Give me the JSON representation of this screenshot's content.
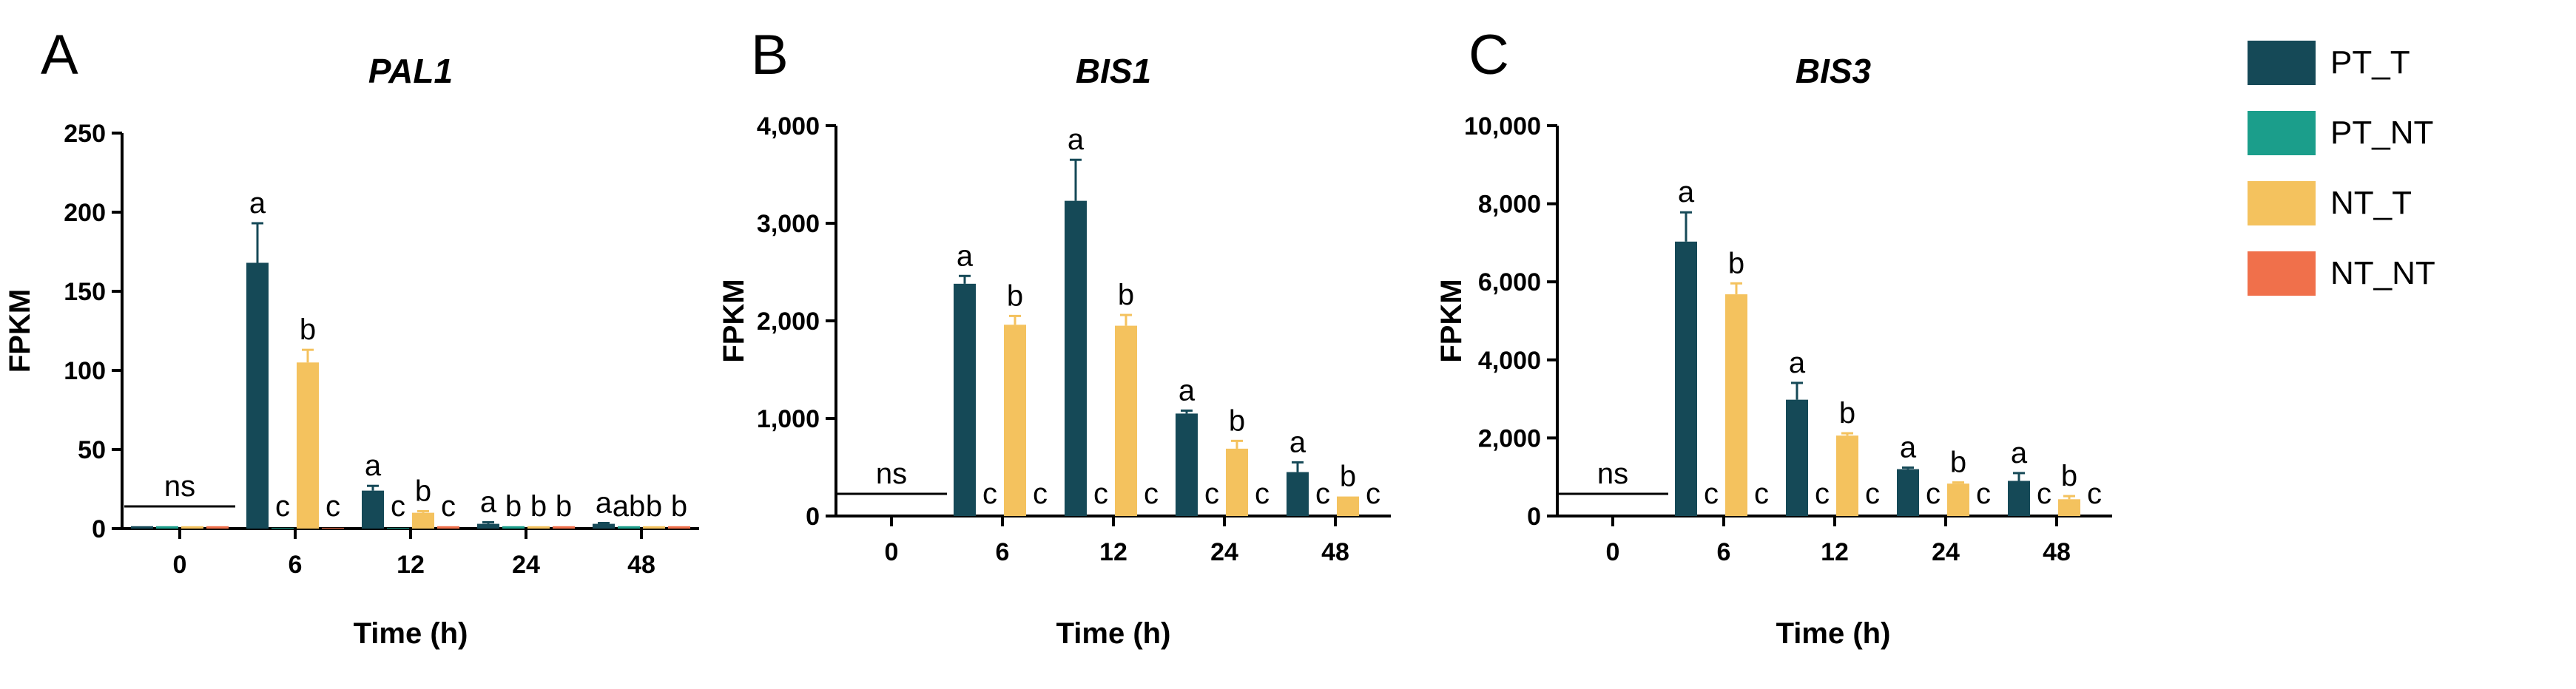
{
  "colors": {
    "PT_T": "#154957",
    "PT_NT": "#1B9E8B",
    "NT_T": "#F4C25E",
    "NT_NT": "#F0704B"
  },
  "legend": [
    "PT_T",
    "PT_NT",
    "NT_T",
    "NT_NT"
  ],
  "chart_data": [
    {
      "type": "bar",
      "panel": "A",
      "title": "PAL1",
      "xlabel": "Time (h)",
      "ylabel": "FPKM",
      "categories": [
        "0",
        "6",
        "12",
        "24",
        "48"
      ],
      "ylim": [
        0,
        250
      ],
      "yticks": [
        0,
        50,
        100,
        150,
        200,
        250
      ],
      "ytick_labels": [
        "0",
        "50",
        "100",
        "150",
        "200",
        "250"
      ],
      "series": [
        {
          "name": "PT_T",
          "values": [
            1.5,
            168,
            24,
            3,
            3
          ],
          "errors": [
            0,
            25,
            3,
            1,
            0.5
          ]
        },
        {
          "name": "PT_NT",
          "values": [
            1.5,
            0.5,
            0.5,
            1.5,
            1.5
          ],
          "errors": [
            0,
            0,
            0,
            0,
            0
          ]
        },
        {
          "name": "NT_T",
          "values": [
            1.5,
            105,
            10,
            1.5,
            1.5
          ],
          "errors": [
            0,
            8,
            1,
            0,
            0
          ]
        },
        {
          "name": "NT_NT",
          "values": [
            1.5,
            0.5,
            1.5,
            1.5,
            1.5
          ],
          "errors": [
            0,
            0,
            0,
            0,
            0
          ]
        }
      ],
      "ns_group": 0,
      "ns_label": "ns",
      "significance": [
        [],
        [
          "a",
          "c",
          "b",
          "c"
        ],
        [
          "a",
          "c",
          "b",
          "c"
        ],
        [
          "a",
          "b",
          "b",
          "b"
        ],
        [
          "a",
          "ab",
          "b",
          "b"
        ]
      ]
    },
    {
      "type": "bar",
      "panel": "B",
      "title": "BIS1",
      "xlabel": "Time (h)",
      "ylabel": "FPKM",
      "categories": [
        "0",
        "6",
        "12",
        "24",
        "48"
      ],
      "ylim": [
        0,
        4000
      ],
      "yticks": [
        0,
        1000,
        2000,
        3000,
        4000
      ],
      "ytick_labels": [
        "0",
        "1,000",
        "2,000",
        "3,000",
        "4,000"
      ],
      "series": [
        {
          "name": "PT_T",
          "values": [
            0,
            2380,
            3230,
            1050,
            450
          ],
          "errors": [
            0,
            80,
            420,
            30,
            100
          ]
        },
        {
          "name": "PT_NT",
          "values": [
            0,
            0,
            0,
            0,
            0
          ],
          "errors": [
            0,
            0,
            0,
            0,
            0
          ]
        },
        {
          "name": "NT_T",
          "values": [
            0,
            1960,
            1950,
            690,
            200
          ],
          "errors": [
            0,
            90,
            110,
            80,
            0
          ]
        },
        {
          "name": "NT_NT",
          "values": [
            0,
            0,
            0,
            0,
            0
          ],
          "errors": [
            0,
            0,
            0,
            0,
            0
          ]
        }
      ],
      "ns_group": 0,
      "ns_label": "ns",
      "significance": [
        [],
        [
          "a",
          "c",
          "b",
          "c"
        ],
        [
          "a",
          "c",
          "b",
          "c"
        ],
        [
          "a",
          "c",
          "b",
          "c"
        ],
        [
          "a",
          "c",
          "b",
          "c"
        ]
      ]
    },
    {
      "type": "bar",
      "panel": "C",
      "title": "BIS3",
      "xlabel": "Time (h)",
      "ylabel": "FPKM",
      "categories": [
        "0",
        "6",
        "12",
        "24",
        "48"
      ],
      "ylim": [
        0,
        10000
      ],
      "yticks": [
        0,
        2000,
        4000,
        6000,
        8000,
        10000
      ],
      "ytick_labels": [
        "0",
        "2,000",
        "4,000",
        "6,000",
        "8,000",
        "10,000"
      ],
      "series": [
        {
          "name": "PT_T",
          "values": [
            0,
            7030,
            2980,
            1200,
            900
          ],
          "errors": [
            0,
            750,
            430,
            40,
            200
          ]
        },
        {
          "name": "PT_NT",
          "values": [
            0,
            0,
            0,
            0,
            0
          ],
          "errors": [
            0,
            0,
            0,
            0,
            0
          ]
        },
        {
          "name": "NT_T",
          "values": [
            0,
            5680,
            2060,
            830,
            430
          ],
          "errors": [
            0,
            280,
            60,
            30,
            80
          ]
        },
        {
          "name": "NT_NT",
          "values": [
            0,
            0,
            0,
            0,
            0
          ],
          "errors": [
            0,
            0,
            0,
            0,
            0
          ]
        }
      ],
      "ns_group": 0,
      "ns_label": "ns",
      "significance": [
        [],
        [
          "a",
          "c",
          "b",
          "c"
        ],
        [
          "a",
          "c",
          "b",
          "c"
        ],
        [
          "a",
          "c",
          "b",
          "c"
        ],
        [
          "a",
          "c",
          "b",
          "c"
        ]
      ]
    }
  ]
}
